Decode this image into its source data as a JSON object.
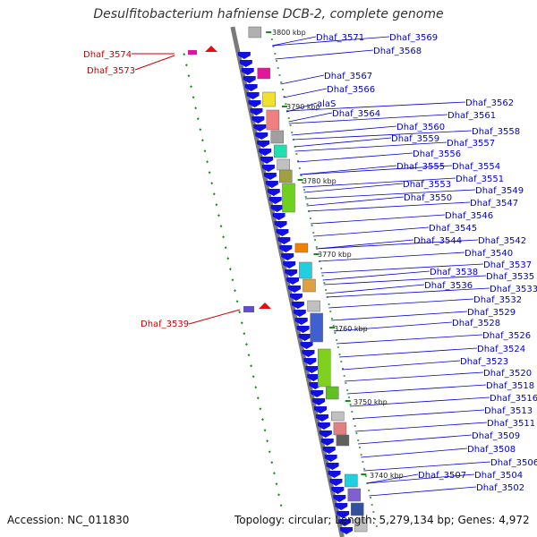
{
  "title": "Desulfitobacterium hafniense DCB-2, complete genome",
  "footer": {
    "accession": "Accession: NC_011830",
    "topology": "Topology: circular; Length: 5,279,134 bp; Genes: 4,972"
  },
  "kbp_ticks": [
    "3800 kbp",
    "3790 kbp",
    "3780 kbp",
    "3770 kbp",
    "3760 kbp",
    "3750 kbp",
    "3740 kbp"
  ],
  "inner_labels": [
    "Dhaf_3574",
    "Dhaf_3573",
    "Dhaf_3539"
  ],
  "gene_labels": [
    "Dhaf_3571",
    "Dhaf_3569",
    "Dhaf_3568",
    "Dhaf_3567",
    "Dhaf_3566",
    "alaS",
    "Dhaf_3564",
    "Dhaf_3562",
    "Dhaf_3561",
    "Dhaf_3560",
    "Dhaf_3558",
    "Dhaf_3559",
    "Dhaf_3557",
    "Dhaf_3556",
    "Dhaf_3555",
    "Dhaf_3554",
    "Dhaf_3551",
    "Dhaf_3553",
    "Dhaf_3550",
    "Dhaf_3549",
    "Dhaf_3547",
    "Dhaf_3546",
    "Dhaf_3545",
    "Dhaf_3544",
    "Dhaf_3542",
    "Dhaf_3540",
    "Dhaf_3537",
    "Dhaf_3538",
    "Dhaf_3535",
    "Dhaf_3536",
    "Dhaf_3533",
    "Dhaf_3532",
    "Dhaf_3529",
    "Dhaf_3528",
    "Dhaf_3526",
    "Dhaf_3524",
    "Dhaf_3523",
    "Dhaf_3520",
    "Dhaf_3518",
    "Dhaf_3516",
    "Dhaf_3513",
    "Dhaf_3511",
    "Dhaf_3509",
    "Dhaf_3508",
    "Dhaf_3506",
    "Dhaf_3507",
    "Dhaf_3504",
    "Dhaf_3502"
  ],
  "colors": {
    "backbone": "#7a7a7a",
    "forward_gene": "#1010e0",
    "reverse_gene": "#e01010",
    "tick": "#1a8a1a",
    "label_forward": "#0000cc",
    "label_reverse": "#cc0000"
  }
}
